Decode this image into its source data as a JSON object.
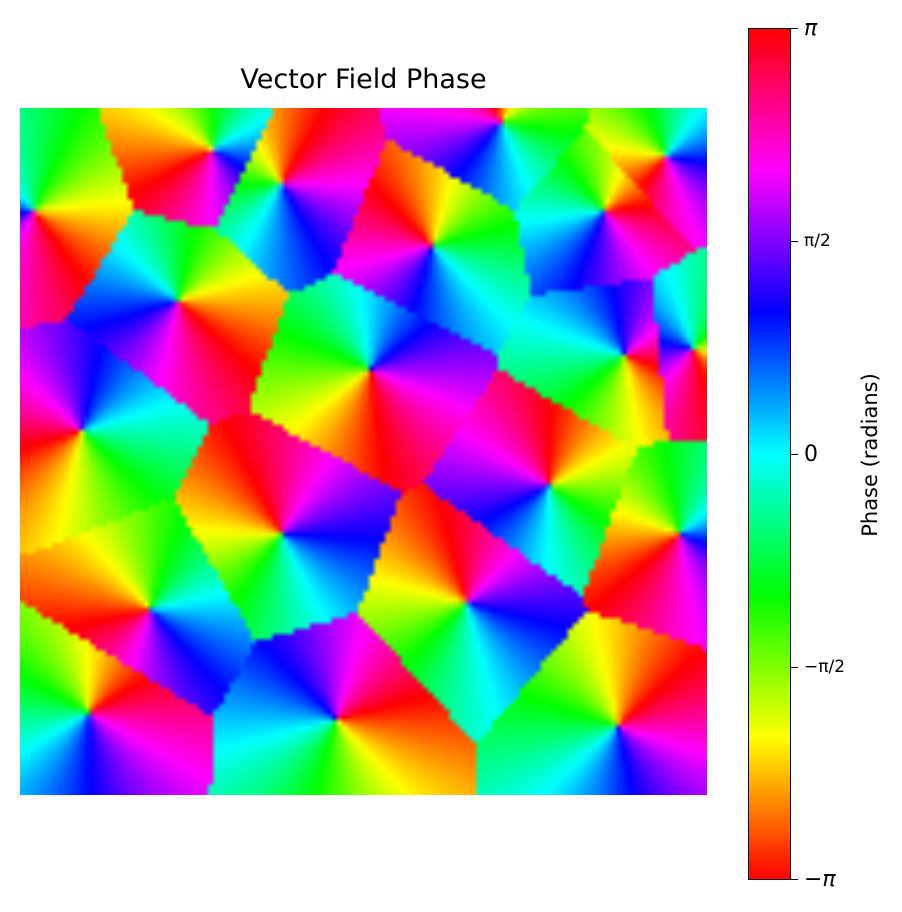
{
  "chart_data": {
    "type": "heatmap",
    "title": "Vector Field Phase",
    "colormap": "hsv",
    "image_grid": [
      128,
      128
    ],
    "value_range": [
      -3.14159,
      3.14159
    ],
    "colorbar": {
      "label": "Phase (radians)",
      "ticks": [
        {
          "value": 3.14159,
          "label": "π"
        },
        {
          "value": 1.5708,
          "label": "π/2"
        },
        {
          "value": 0,
          "label": "0"
        },
        {
          "value": -1.5708,
          "label": "−π/2"
        },
        {
          "value": -3.14159,
          "label": "−π"
        }
      ]
    },
    "axes_visible": false,
    "vortex_centers": [
      [
        0.28,
        0.06
      ],
      [
        0.38,
        0.11
      ],
      [
        0.7,
        0.02
      ],
      [
        0.85,
        0.15
      ],
      [
        0.94,
        0.07
      ],
      [
        0.23,
        0.28
      ],
      [
        0.51,
        0.38
      ],
      [
        0.09,
        0.47
      ],
      [
        0.88,
        0.36
      ],
      [
        0.98,
        0.35
      ],
      [
        0.19,
        0.73
      ],
      [
        0.65,
        0.72
      ],
      [
        0.46,
        0.89
      ],
      [
        0.87,
        0.9
      ],
      [
        0.6,
        0.2
      ],
      [
        0.38,
        0.62
      ],
      [
        0.77,
        0.55
      ],
      [
        0.1,
        0.88
      ],
      [
        0.96,
        0.62
      ],
      [
        0.02,
        0.15
      ]
    ],
    "vortex_charges": [
      1,
      -1,
      1,
      -1,
      1,
      -1,
      1,
      -1,
      1,
      -1,
      1,
      -1,
      1,
      -1,
      1,
      -1,
      1,
      -1,
      1,
      -1
    ],
    "vortex_angles": [
      0.5,
      2.1,
      -1.2,
      3.0,
      0.9,
      -2.4,
      1.7,
      -0.3,
      2.8,
      -1.9,
      0.2,
      1.3,
      -2.9,
      2.4,
      -0.8,
      1.1,
      -1.6,
      2.6,
      0.7,
      -2.2
    ]
  }
}
